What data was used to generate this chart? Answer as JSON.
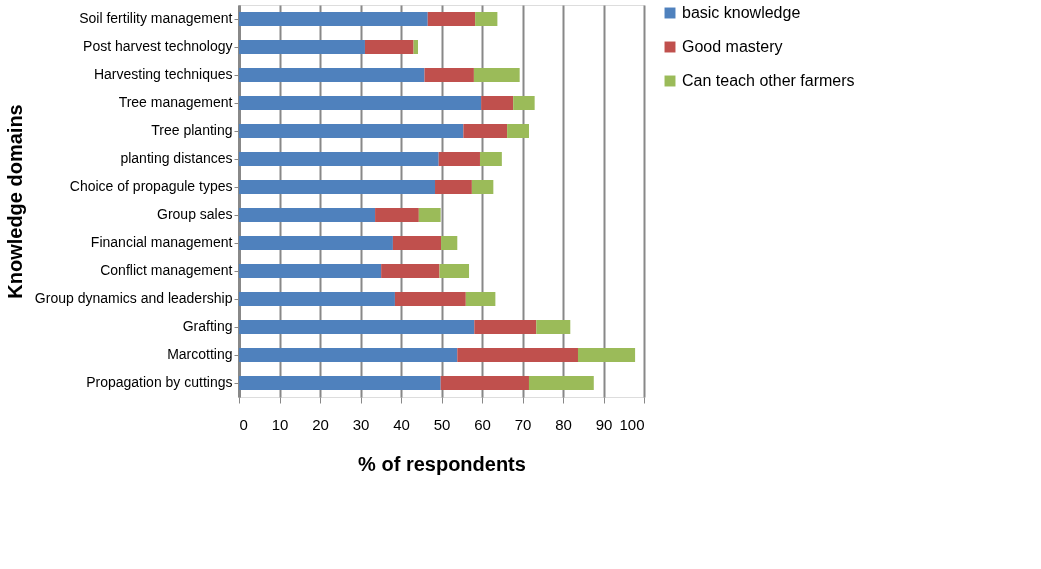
{
  "chart_data": {
    "type": "bar",
    "orientation": "horizontal",
    "stacked": true,
    "xlabel": "% of respondents",
    "ylabel": "Knowledge domains",
    "categories": [
      "Soil fertility management",
      "Post harvest technology",
      "Harvesting techniques",
      "Tree management",
      "Tree planting",
      "planting distances",
      "Choice of propagule types",
      "Group sales",
      "Financial management",
      "Conflict management",
      "Group dynamics and leadership",
      "Grafting",
      "Marcotting",
      "Propagation by cuttings"
    ],
    "series": [
      {
        "name": "basic knowledge",
        "color": "#4f81bd",
        "values": [
          46.6,
          31.1,
          45.8,
          59.8,
          55.4,
          49.3,
          48.4,
          33.6,
          38.0,
          35.1,
          38.5,
          58.1,
          53.9,
          49.8
        ]
      },
      {
        "name": "Good mastery",
        "color": "#c0504d",
        "values": [
          11.7,
          12.0,
          12.2,
          7.9,
          10.8,
          10.2,
          9.1,
          10.8,
          11.9,
          14.4,
          17.5,
          15.3,
          29.8,
          21.8
        ]
      },
      {
        "name": "Can  teach other farmers",
        "color": "#9bbb59",
        "values": [
          5.5,
          1.1,
          11.3,
          5.3,
          5.4,
          5.4,
          5.3,
          5.4,
          4.0,
          7.3,
          7.3,
          8.4,
          14.1,
          16.0
        ]
      }
    ],
    "xlim": [
      0,
      100
    ],
    "xticks": [
      0,
      10,
      20,
      30,
      40,
      50,
      60,
      70,
      80,
      90,
      100
    ],
    "grid": "x",
    "legend": "right"
  }
}
